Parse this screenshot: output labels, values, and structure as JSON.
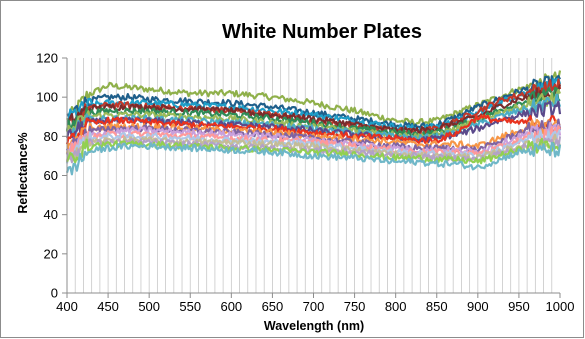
{
  "chart_data": {
    "type": "line",
    "title": "White Number Plates",
    "xlabel": "Wavelength (nm)",
    "ylabel": "Reflectance%",
    "xlim": [
      400,
      1000
    ],
    "ylim": [
      0,
      120
    ],
    "x_ticks": [
      400,
      450,
      500,
      550,
      600,
      650,
      700,
      750,
      800,
      850,
      900,
      950,
      1000
    ],
    "y_ticks": [
      0,
      20,
      40,
      60,
      80,
      100,
      120
    ],
    "grid": {
      "vertical": true,
      "horizontal": false
    },
    "legend": "none",
    "x": [
      400,
      425,
      450,
      475,
      500,
      550,
      600,
      650,
      700,
      750,
      800,
      825,
      850,
      875,
      900,
      925,
      950,
      975,
      1000
    ],
    "series": [
      {
        "color": "#8fb04a",
        "values": [
          88,
          101,
          106,
          105,
          104,
          102,
          102,
          100,
          97,
          93,
          88,
          87,
          88,
          92,
          96,
          100,
          104,
          107,
          110
        ]
      },
      {
        "color": "#1f5f8b",
        "values": [
          90,
          98,
          100,
          100,
          99,
          98,
          97,
          95,
          92,
          89,
          86,
          85,
          86,
          90,
          95,
          99,
          103,
          106,
          108
        ]
      },
      {
        "color": "#1e9ec8",
        "values": [
          89,
          96,
          97,
          97,
          97,
          96,
          95,
          93,
          91,
          88,
          85,
          84,
          85,
          88,
          92,
          97,
          101,
          104,
          106
        ]
      },
      {
        "color": "#c0392b",
        "values": [
          85,
          94,
          96,
          96,
          95,
          94,
          93,
          91,
          88,
          85,
          83,
          82,
          84,
          88,
          93,
          98,
          101,
          104,
          106
        ]
      },
      {
        "color": "#7a2c2c",
        "values": [
          86,
          94,
          95,
          95,
          95,
          94,
          93,
          91,
          89,
          86,
          83,
          83,
          84,
          87,
          90,
          95,
          99,
          101,
          103
        ]
      },
      {
        "color": "#2e8b57",
        "values": [
          84,
          92,
          93,
          93,
          93,
          92,
          91,
          89,
          87,
          84,
          82,
          81,
          82,
          85,
          89,
          93,
          97,
          100,
          102
        ]
      },
      {
        "color": "#9bbb59",
        "values": [
          82,
          90,
          91,
          91,
          91,
          90,
          89,
          87,
          85,
          83,
          81,
          80,
          81,
          84,
          88,
          92,
          95,
          98,
          100
        ]
      },
      {
        "color": "#4bacc6",
        "values": [
          80,
          88,
          89,
          89,
          89,
          88,
          87,
          86,
          84,
          82,
          80,
          79,
          80,
          82,
          86,
          90,
          93,
          96,
          98
        ]
      },
      {
        "color": "#5b4a8b",
        "values": [
          79,
          87,
          88,
          88,
          88,
          87,
          86,
          85,
          83,
          81,
          79,
          78,
          79,
          81,
          84,
          88,
          91,
          93,
          95
        ]
      },
      {
        "color": "#e8321e",
        "values": [
          75,
          86,
          88,
          88,
          87,
          86,
          85,
          84,
          82,
          80,
          79,
          78,
          78,
          82,
          90,
          88,
          87,
          87,
          87
        ]
      },
      {
        "color": "#f79646",
        "values": [
          74,
          83,
          85,
          85,
          85,
          84,
          83,
          82,
          80,
          79,
          77,
          76,
          76,
          76,
          75,
          79,
          83,
          85,
          86
        ]
      },
      {
        "color": "#8064a2",
        "values": [
          73,
          82,
          84,
          84,
          84,
          83,
          82,
          81,
          79,
          77,
          75,
          74,
          74,
          74,
          73,
          77,
          82,
          84,
          85
        ]
      },
      {
        "color": "#c9a0dc",
        "values": [
          72,
          80,
          82,
          83,
          83,
          82,
          81,
          80,
          78,
          76,
          74,
          73,
          73,
          73,
          72,
          76,
          80,
          82,
          84
        ]
      },
      {
        "color": "#ff9999",
        "values": [
          71,
          79,
          81,
          81,
          81,
          80,
          79,
          78,
          77,
          75,
          73,
          72,
          72,
          72,
          71,
          74,
          78,
          80,
          82
        ]
      },
      {
        "color": "#aec7e8",
        "values": [
          70,
          78,
          80,
          80,
          80,
          79,
          78,
          77,
          76,
          74,
          72,
          71,
          71,
          71,
          70,
          73,
          77,
          79,
          80
        ]
      },
      {
        "color": "#c4bd97",
        "values": [
          69,
          77,
          78,
          78,
          78,
          77,
          77,
          76,
          75,
          73,
          71,
          70,
          70,
          70,
          69,
          72,
          75,
          77,
          78
        ]
      },
      {
        "color": "#b3a2c7",
        "values": [
          68,
          76,
          77,
          77,
          77,
          76,
          75,
          74,
          73,
          72,
          70,
          70,
          69,
          69,
          68,
          71,
          74,
          76,
          77
        ]
      },
      {
        "color": "#92d050",
        "values": [
          67,
          75,
          76,
          76,
          76,
          75,
          74,
          73,
          72,
          71,
          69,
          69,
          68,
          68,
          67,
          70,
          73,
          75,
          76
        ]
      },
      {
        "color": "#6fb7c8",
        "values": [
          60,
          72,
          74,
          75,
          75,
          74,
          73,
          72,
          70,
          69,
          67,
          67,
          66,
          66,
          64,
          68,
          72,
          73,
          73
        ]
      }
    ]
  }
}
